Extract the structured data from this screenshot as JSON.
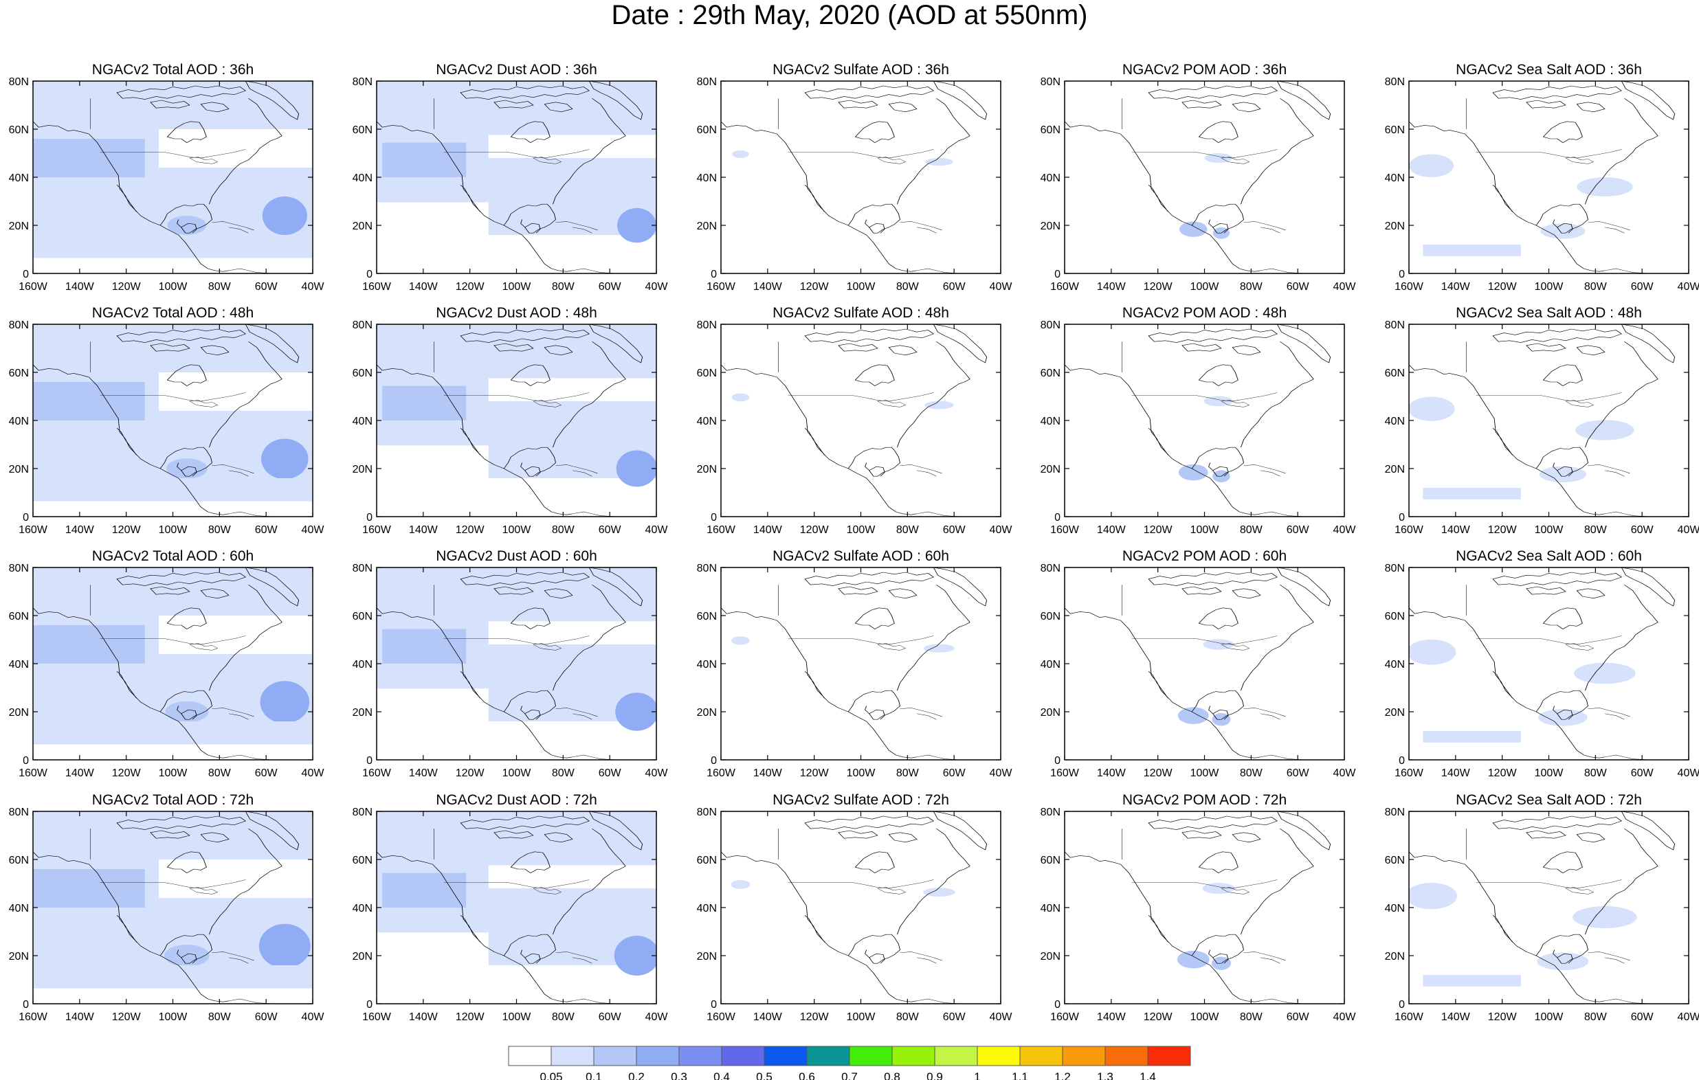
{
  "title": "Date : 29th May, 2020 (AOD at 550nm)",
  "colors": {
    "levels": [
      "#ffffff",
      "#d6e2fb",
      "#b4c8f7",
      "#90acf5",
      "#7b8ef2",
      "#6268ea",
      "#0a58ee",
      "#0a9494",
      "#43ee0a",
      "#97f20a",
      "#c2f545",
      "#fbfb07",
      "#f8c409",
      "#f89a09",
      "#f86d09",
      "#f82c09"
    ],
    "map_shading": {
      "light": "#d6e2fb",
      "medium": "#b4c8f7",
      "strong": "#90acf5",
      "intense": "#7b8ef2"
    },
    "coast": "#000000"
  },
  "axes": {
    "x_ticks": [
      "160W",
      "140W",
      "120W",
      "100W",
      "80W",
      "60W",
      "40W"
    ],
    "y_ticks": [
      "80N",
      "60N",
      "40N",
      "20N",
      "0"
    ]
  },
  "panels": [
    [
      "NGACv2 Total AOD : 36h",
      "NGACv2 Dust AOD : 36h",
      "NGACv2 Sulfate AOD : 36h",
      "NGACv2 POM AOD : 36h",
      "NGACv2 Sea Salt AOD : 36h"
    ],
    [
      "NGACv2 Total AOD : 48h",
      "NGACv2 Dust AOD : 48h",
      "NGACv2 Sulfate AOD : 48h",
      "NGACv2 POM AOD : 48h",
      "NGACv2 Sea Salt AOD : 48h"
    ],
    [
      "NGACv2 Total AOD : 60h",
      "NGACv2 Dust AOD : 60h",
      "NGACv2 Sulfate AOD : 60h",
      "NGACv2 POM AOD : 60h",
      "NGACv2 Sea Salt AOD : 60h"
    ],
    [
      "NGACv2 Total AOD : 72h",
      "NGACv2 Dust AOD : 72h",
      "NGACv2 Sulfate AOD : 72h",
      "NGACv2 POM AOD : 72h",
      "NGACv2 Sea Salt  AOD : 72h"
    ]
  ],
  "colorbar": {
    "labels": [
      "0.05",
      "0.1",
      "0.2",
      "0.3",
      "0.4",
      "0.5",
      "0.6",
      "0.7",
      "0.8",
      "0.9",
      "1",
      "1.1",
      "1.2",
      "1.3",
      "1.4"
    ]
  }
}
